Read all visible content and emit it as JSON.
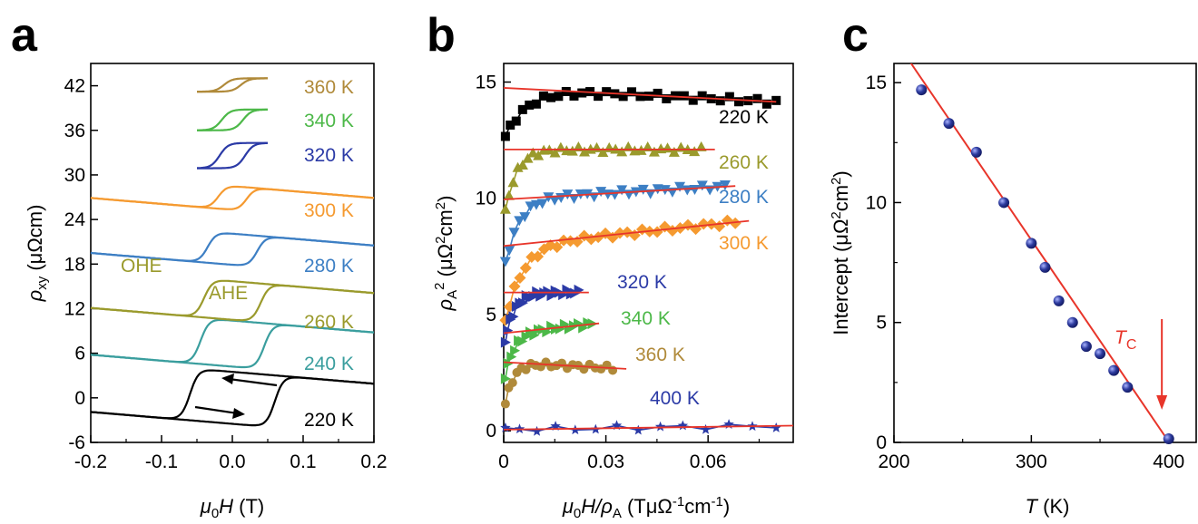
{
  "panels": [
    {
      "letter": "a"
    },
    {
      "letter": "b"
    },
    {
      "letter": "c"
    }
  ],
  "colors": {
    "220 K": "#000000",
    "240 K": "#3a9e9e",
    "260 K": "#9a9a2c",
    "280 K": "#3d7fc4",
    "300 K": "#f59a30",
    "320 K": "#2b3aa6",
    "340 K": "#4cb848",
    "360 K": "#b08a3a",
    "400 K": "#2b3aa6",
    "fit": "#e8352a",
    "point": "#2d3b9e"
  },
  "chart_data": [
    {
      "panel": "a",
      "type": "line",
      "xlabel": "μ0H (T)",
      "ylabel": "ρxy (μΩcm)",
      "xlim": [
        -0.2,
        0.2
      ],
      "ylim": [
        -6,
        45
      ],
      "xticks": [
        "-0.2",
        "-0.1",
        "0.0",
        "0.1",
        "0.2"
      ],
      "yticks": [
        "-6",
        "0",
        "6",
        "12",
        "18",
        "24",
        "30",
        "36",
        "42"
      ],
      "annotations": [
        "OHE",
        "AHE"
      ],
      "series": [
        {
          "name": "220 K",
          "offset": 0,
          "width": 3.5,
          "slope": -8,
          "hc": 0.06,
          "xmin": -0.2,
          "xmax": 0.2
        },
        {
          "name": "240 K",
          "offset": 7.3,
          "width": 3.1,
          "slope": -8,
          "hc": 0.045,
          "xmin": -0.2,
          "xmax": 0.2
        },
        {
          "name": "260 K",
          "offset": 13.1,
          "width": 2.6,
          "slope": -8,
          "hc": 0.04,
          "xmin": -0.2,
          "xmax": 0.2
        },
        {
          "name": "280 K",
          "offset": 20.0,
          "width": 2.1,
          "slope": -8,
          "hc": 0.035,
          "xmin": -0.2,
          "xmax": 0.2
        },
        {
          "name": "300 K",
          "offset": 26.9,
          "width": 1.6,
          "slope": -8,
          "hc": 0.02,
          "xmin": -0.2,
          "xmax": 0.2
        },
        {
          "name": "320 K",
          "offset": 32.6,
          "width": 1.7,
          "slope": 0,
          "hc": 0.018,
          "xmin": -0.05,
          "xmax": 0.05
        },
        {
          "name": "340 K",
          "offset": 37.4,
          "width": 1.4,
          "slope": 0,
          "hc": 0.015,
          "xmin": -0.05,
          "xmax": 0.05
        },
        {
          "name": "360 K",
          "offset": 42.1,
          "width": 0.9,
          "slope": 0,
          "hc": 0.012,
          "xmin": -0.05,
          "xmax": 0.05
        }
      ]
    },
    {
      "panel": "b",
      "type": "scatter",
      "xlabel": "μ0H/ρA (TμΩ⁻¹cm⁻¹)",
      "ylabel": "ρA² (μΩ²cm²)",
      "xlim": [
        0,
        0.085
      ],
      "ylim": [
        -0.5,
        15.8
      ],
      "xticks": [
        "0",
        "0.03",
        "0.06"
      ],
      "yticks": [
        "0",
        "5",
        "10",
        "15"
      ],
      "series": [
        {
          "name": "220 K",
          "marker": "square",
          "intercept": 14.75,
          "fit_slope": -7.5,
          "fit_xmax": 0.08,
          "xmax": 0.08,
          "start": 12.5,
          "k": 150
        },
        {
          "name": "260 K",
          "marker": "triangle-up",
          "intercept": 12.1,
          "fit_slope": 0,
          "fit_xmax": 0.062,
          "xmax": 0.058,
          "start": 9.0,
          "k": 300
        },
        {
          "name": "280 K",
          "marker": "triangle-down",
          "intercept": 9.95,
          "fit_slope": 8.5,
          "fit_xmax": 0.068,
          "xmax": 0.065,
          "start": 6.8,
          "k": 250
        },
        {
          "name": "300 K",
          "marker": "diamond",
          "intercept": 7.95,
          "fit_slope": 15,
          "fit_xmax": 0.072,
          "xmax": 0.068,
          "start": 4.4,
          "k": 200
        },
        {
          "name": "320 K",
          "marker": "triangle-right",
          "intercept": 5.95,
          "fit_slope": 0,
          "fit_xmax": 0.025,
          "xmax": 0.022,
          "start": 3.5,
          "k": 350
        },
        {
          "name": "340 K",
          "marker": "triangle-right",
          "intercept": 4.2,
          "fit_slope": 15,
          "fit_xmax": 0.028,
          "xmax": 0.026,
          "start": 2.0,
          "k": 350
        },
        {
          "name": "360 K",
          "marker": "circle",
          "intercept": 2.95,
          "fit_slope": -8,
          "fit_xmax": 0.036,
          "xmax": 0.032,
          "start": 0.8,
          "k": 400
        },
        {
          "name": "400 K",
          "marker": "star",
          "intercept": 0.05,
          "fit_slope": 2,
          "fit_xmax": 0.085,
          "xmax": 0.08,
          "start": 0.05,
          "k": 1000
        }
      ]
    },
    {
      "panel": "c",
      "type": "scatter",
      "xlabel": "T (K)",
      "ylabel": "Intercept (μΩ²cm²)",
      "xlim": [
        200,
        420
      ],
      "ylim": [
        0,
        15.8
      ],
      "xticks": [
        "200",
        "300",
        "400"
      ],
      "yticks": [
        "0",
        "5",
        "10",
        "15"
      ],
      "annotation": "TC",
      "x": [
        220,
        240,
        260,
        280,
        300,
        310,
        320,
        330,
        340,
        350,
        360,
        370,
        400
      ],
      "y": [
        14.7,
        13.3,
        12.1,
        10.0,
        8.3,
        7.3,
        5.9,
        5.0,
        4.0,
        3.7,
        3.0,
        2.3,
        0.15
      ],
      "fit": {
        "x": [
          200,
          420
        ],
        "y": [
          16.85,
          -1.65
        ]
      },
      "arrow_x": 395
    }
  ]
}
